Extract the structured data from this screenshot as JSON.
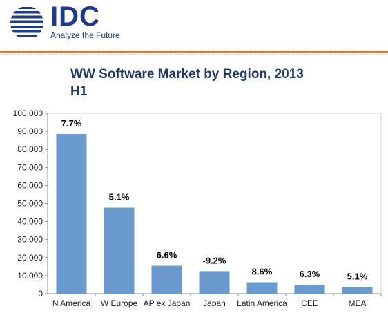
{
  "header": {
    "logo_text": "IDC",
    "tagline": "Analyze the Future",
    "colors": {
      "brand": "#1f3a8a",
      "accent": "#e87722"
    }
  },
  "chart_data": {
    "type": "bar",
    "title": "WW Software Market by Region, 2013 H1",
    "title_lines": [
      "WW Software Market by Region, 2013",
      "H1"
    ],
    "categories": [
      "N America",
      "W Europe",
      "AP ex Japan",
      "Japan",
      "Latin America",
      "CEE",
      "MEA"
    ],
    "values": [
      88500,
      47700,
      15500,
      12500,
      6300,
      4900,
      3700
    ],
    "data_labels": [
      "7.7%",
      "5.1%",
      "6.6%",
      "-9.2%",
      "8.6%",
      "6.3%",
      "5.1%"
    ],
    "ylim": [
      0,
      100000
    ],
    "yticks": [
      0,
      10000,
      20000,
      30000,
      40000,
      50000,
      60000,
      70000,
      80000,
      90000,
      100000
    ],
    "ytick_labels": [
      "0",
      "10,000",
      "20,000",
      "30,000",
      "40,000",
      "50,000",
      "60,000",
      "70,000",
      "80,000",
      "90,000",
      "100,000"
    ],
    "xlabel": "",
    "ylabel": "",
    "bar_color": "#6a9acd",
    "grid": false,
    "legend": "none"
  }
}
